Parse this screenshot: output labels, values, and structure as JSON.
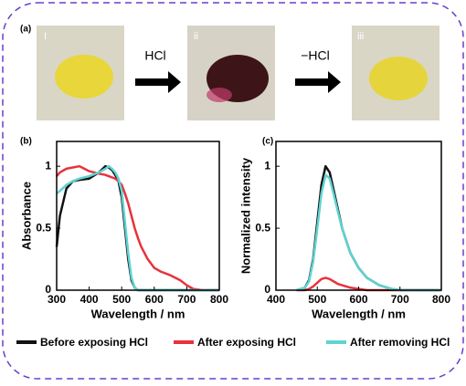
{
  "photos": {
    "panel_label": "(a)",
    "labels": [
      "I",
      "ii",
      "iii"
    ],
    "arrows": [
      "HCl",
      "−HCl"
    ]
  },
  "chart_data": [
    {
      "type": "line",
      "panel_label": "(b)",
      "x_label": "Wavelength / nm",
      "y_label": "Absorbance",
      "x": [
        300,
        310,
        330,
        350,
        370,
        400,
        430,
        450,
        460,
        470,
        480,
        490,
        500,
        510,
        520,
        530,
        540,
        550,
        560,
        580,
        600,
        620,
        650,
        680,
        700,
        720,
        750,
        800
      ],
      "series": [
        {
          "name": "Before exposing HCl",
          "color": "#111111",
          "values": [
            0.35,
            0.6,
            0.82,
            0.88,
            0.89,
            0.9,
            0.95,
            1.0,
            0.99,
            0.97,
            0.93,
            0.88,
            0.75,
            0.5,
            0.25,
            0.08,
            0.02,
            0,
            0,
            0,
            0,
            0,
            0,
            0,
            0,
            0,
            0,
            0
          ]
        },
        {
          "name": "After exposing HCl",
          "color": "#e8323c",
          "values": [
            0.92,
            0.95,
            0.98,
            0.99,
            1.0,
            0.96,
            0.94,
            0.93,
            0.92,
            0.91,
            0.9,
            0.88,
            0.85,
            0.78,
            0.7,
            0.6,
            0.5,
            0.42,
            0.35,
            0.25,
            0.18,
            0.15,
            0.12,
            0.08,
            0.04,
            0.01,
            0,
            0
          ]
        },
        {
          "name": "After removing HCl",
          "color": "#5fd3d3",
          "values": [
            0.78,
            0.8,
            0.85,
            0.88,
            0.9,
            0.92,
            0.95,
            0.98,
            1.0,
            0.98,
            0.95,
            0.9,
            0.8,
            0.55,
            0.3,
            0.1,
            0.02,
            0,
            0,
            0,
            0,
            0,
            0,
            0,
            0,
            0,
            0,
            0
          ]
        }
      ],
      "xlim": [
        300,
        800
      ],
      "xticks": [
        300,
        400,
        500,
        600,
        700,
        800
      ],
      "ylim": [
        0,
        1.2
      ],
      "yticks": [
        0,
        0.5,
        1
      ]
    },
    {
      "type": "line",
      "panel_label": "(c)",
      "x_label": "Wavelength / nm",
      "y_label": "Normalized intensity",
      "x": [
        450,
        470,
        480,
        490,
        500,
        510,
        520,
        530,
        540,
        550,
        560,
        580,
        600,
        620,
        650,
        680,
        700,
        750,
        800
      ],
      "series": [
        {
          "color": "#111111",
          "values": [
            0,
            0.02,
            0.08,
            0.25,
            0.55,
            0.85,
            1.0,
            0.95,
            0.8,
            0.65,
            0.5,
            0.3,
            0.18,
            0.1,
            0.04,
            0.01,
            0,
            0,
            0
          ]
        },
        {
          "color": "#e8323c",
          "values": [
            0,
            0,
            0.01,
            0.03,
            0.06,
            0.09,
            0.1,
            0.09,
            0.07,
            0.05,
            0.04,
            0.02,
            0.01,
            0,
            0,
            0,
            0,
            0,
            0
          ]
        },
        {
          "color": "#5fd3d3",
          "values": [
            0,
            0.02,
            0.07,
            0.23,
            0.5,
            0.78,
            0.93,
            0.9,
            0.77,
            0.63,
            0.5,
            0.3,
            0.18,
            0.1,
            0.04,
            0.01,
            0,
            0,
            0
          ]
        }
      ],
      "xlim": [
        400,
        800
      ],
      "xticks": [
        400,
        500,
        600,
        700,
        800
      ],
      "ylim": [
        0,
        1.2
      ],
      "yticks": [
        0,
        0.5,
        1
      ]
    }
  ]
}
